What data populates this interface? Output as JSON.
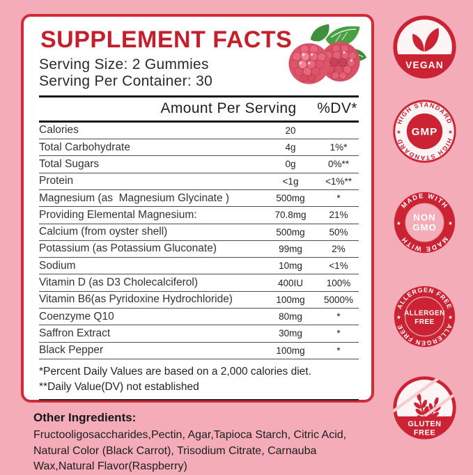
{
  "colors": {
    "background_pink": "#f3acb8",
    "panel_border_red": "#d02b38",
    "title_red": "#c3202b",
    "badge_red": "#cb2333",
    "text_black": "#222222"
  },
  "panel": {
    "title": "SUPPLEMENT FACTS",
    "serving_size": "Serving Size: 2 Gummies",
    "serving_per_container": "Serving Per Container: 30"
  },
  "facts": {
    "col_amount": "Amount Per Serving",
    "col_dv": "%DV*",
    "rows": [
      {
        "label": "Calories",
        "amount": "20",
        "dv": ""
      },
      {
        "label": "Total Carbohydrate",
        "amount": "4g",
        "dv": "1%*"
      },
      {
        "label": "Total Sugars",
        "amount": "0g",
        "dv": "0%**"
      },
      {
        "label": "Protein",
        "amount": "<1g",
        "dv": "<1%**"
      },
      {
        "label": "Magnesium (as  Magnesium Glycinate )",
        "amount": "500mg",
        "dv": "*"
      },
      {
        "label": "Providing Elemental Magnesium:",
        "amount": "70.8mg",
        "dv": "21%"
      },
      {
        "label": "Calcium (from oyster shell)",
        "amount": "500mg",
        "dv": "50%"
      },
      {
        "label": "Potassium (as Potassium Gluconate)",
        "amount": "99mg",
        "dv": "2%"
      },
      {
        "label": "Sodium",
        "amount": "10mg",
        "dv": "<1%"
      },
      {
        "label": "Vitamin D (as D3 Cholecalciferol)",
        "amount": "400IU",
        "dv": "100%"
      },
      {
        "label": "Vitamin B6(as Pyridoxine Hydrochloride)",
        "amount": "100mg",
        "dv": "5000%"
      },
      {
        "label": "Coenzyme Q10",
        "amount": "80mg",
        "dv": "*"
      },
      {
        "label": "Saffron Extract",
        "amount": "30mg",
        "dv": "*"
      },
      {
        "label": "Black Pepper",
        "amount": "100mg",
        "dv": "*"
      }
    ],
    "footnotes": [
      "*Percent Daily Values are based on a 2,000 calories diet.",
      "**Daily Value(DV) not established"
    ]
  },
  "other_ingredients": {
    "heading": "Other Ingredients:",
    "text": "Fructooligosaccharides,Pectin, Agar,Tapioca Starch, Citric Acid, Natural Color (Black Carrot), Trisodium Citrate, Carnauba Wax,Natural Flavor(Raspberry)"
  },
  "badges": {
    "vegan": {
      "label": "VEGAN"
    },
    "gmp": {
      "label": "GMP",
      "arc_top": "HIGH STANDARD",
      "arc_bottom": "HIGH STANDARD",
      "star": "★"
    },
    "non_gmo": {
      "line1": "NON",
      "line2": "GMO",
      "arc_top": "MADE WITH",
      "arc_bottom": "MADE WITH",
      "star": "★"
    },
    "allergen": {
      "line1": "ALLERGEN",
      "line2": "FREE",
      "arc_top": "ALLERGEN FREE",
      "arc_bottom": "ALLERGEN FREE",
      "star": "★"
    },
    "gluten": {
      "line1": "GLUTEN",
      "line2": "FREE"
    }
  }
}
